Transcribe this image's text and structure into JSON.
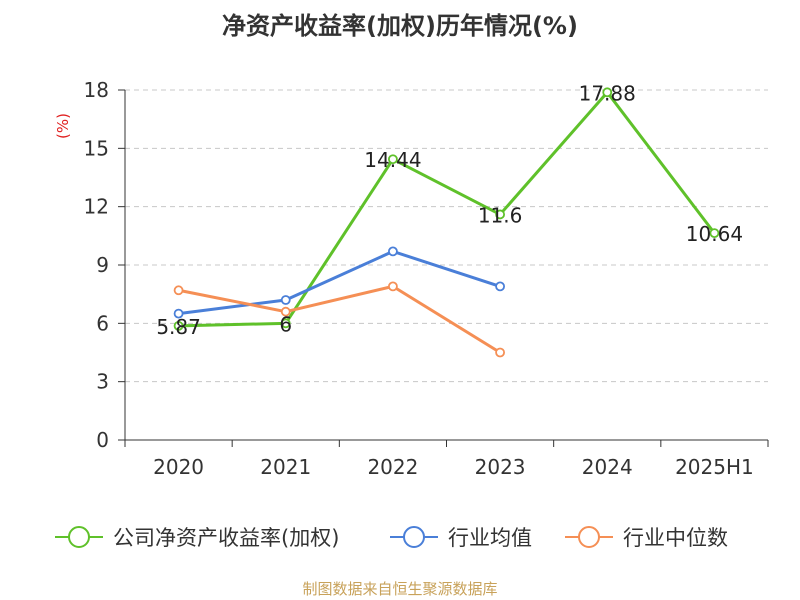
{
  "chart_data": {
    "type": "line",
    "title": "净资产收益率(加权)历年情况(%)",
    "ylabel": "(%)",
    "xlabel": "",
    "categories": [
      "2020",
      "2021",
      "2022",
      "2023",
      "2024",
      "2025H1"
    ],
    "ylim": [
      0,
      18
    ],
    "yticks": [
      "0",
      "3",
      "6",
      "9",
      "12",
      "15",
      "18"
    ],
    "grid": true,
    "legend_position": "bottom",
    "series": [
      {
        "name": "公司净资产收益率(加权)",
        "color": "#5fc12a",
        "values": [
          5.87,
          6,
          14.44,
          11.6,
          17.88,
          10.64
        ],
        "labels": [
          "5.87",
          "6",
          "14.44",
          "11.6",
          "17.88",
          "10.64"
        ]
      },
      {
        "name": "行业均值",
        "color": "#4a7fd8",
        "values": [
          6.5,
          7.2,
          9.7,
          7.9,
          null,
          null
        ]
      },
      {
        "name": "行业中位数",
        "color": "#f58f55",
        "values": [
          7.7,
          6.6,
          7.9,
          4.5,
          null,
          null
        ]
      }
    ],
    "source": "制图数据来自恒生聚源数据库"
  }
}
